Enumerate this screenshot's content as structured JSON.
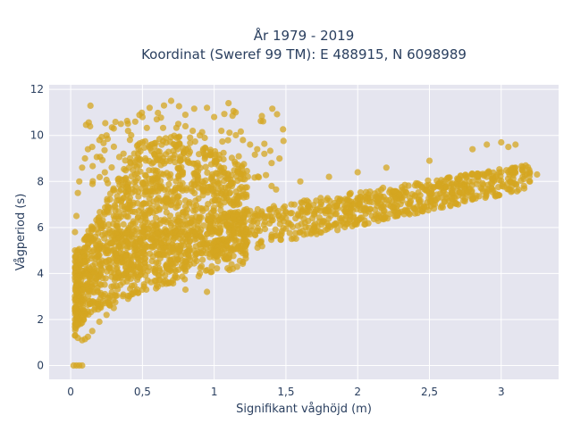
{
  "chart_data": {
    "type": "scatter",
    "title_lines": [
      "År 1979 - 2019",
      "Koordinat (Sweref 99 TM): E 488915, N 6098989"
    ],
    "xlabel": "Signifikant våghöjd (m)",
    "ylabel": "Vågperiod (s)",
    "xlim": [
      -0.15,
      3.4
    ],
    "ylim": [
      -0.6,
      12.2
    ],
    "x_ticks": [
      0,
      0.5,
      1,
      1.5,
      2,
      2.5,
      3
    ],
    "x_tick_labels": [
      "0",
      "0,5",
      "1",
      "1,5",
      "2",
      "2,5",
      "3"
    ],
    "y_ticks": [
      0,
      2,
      4,
      6,
      8,
      10,
      12
    ],
    "y_tick_labels": [
      "0",
      "2",
      "4",
      "6",
      "8",
      "10",
      "12"
    ],
    "grid": true,
    "colors": {
      "marker": "#d4a520",
      "plot_bg": "#e5e5ef",
      "grid": "#ffffff",
      "text": "#2a3f5f"
    },
    "point_count_estimate": 2400,
    "points": [
      [
        0.02,
        0.0
      ],
      [
        0.04,
        0.0
      ],
      [
        0.06,
        0.0
      ],
      [
        0.08,
        0.0
      ],
      [
        0.03,
        1.3
      ],
      [
        0.05,
        1.2
      ],
      [
        0.08,
        1.1
      ],
      [
        0.1,
        1.15
      ],
      [
        0.12,
        1.25
      ],
      [
        0.15,
        1.5
      ],
      [
        0.2,
        1.9
      ],
      [
        0.25,
        2.2
      ],
      [
        0.3,
        2.5
      ],
      [
        0.4,
        2.9
      ],
      [
        0.5,
        3.3
      ],
      [
        0.6,
        3.5
      ],
      [
        0.7,
        3.6
      ],
      [
        0.8,
        3.3
      ],
      [
        0.9,
        4.0
      ],
      [
        0.03,
        2.0
      ],
      [
        0.03,
        3.0
      ],
      [
        0.03,
        4.0
      ],
      [
        0.03,
        5.0
      ],
      [
        0.03,
        5.8
      ],
      [
        0.04,
        6.5
      ],
      [
        0.05,
        7.5
      ],
      [
        0.06,
        8.0
      ],
      [
        0.08,
        8.6
      ],
      [
        0.1,
        9.0
      ],
      [
        0.12,
        9.4
      ],
      [
        0.15,
        9.5
      ],
      [
        0.2,
        9.8
      ],
      [
        0.25,
        10.0
      ],
      [
        0.3,
        10.3
      ],
      [
        0.35,
        10.5
      ],
      [
        0.4,
        10.2
      ],
      [
        0.45,
        10.6
      ],
      [
        0.5,
        10.8
      ],
      [
        0.55,
        11.2
      ],
      [
        0.6,
        10.7
      ],
      [
        0.65,
        11.3
      ],
      [
        0.7,
        11.5
      ],
      [
        0.75,
        10.5
      ],
      [
        0.8,
        10.4
      ],
      [
        0.85,
        10.2
      ],
      [
        0.9,
        10.0
      ],
      [
        0.95,
        11.2
      ],
      [
        1.0,
        10.8
      ],
      [
        1.05,
        10.2
      ],
      [
        1.1,
        11.4
      ],
      [
        1.15,
        11.0
      ],
      [
        1.2,
        9.8
      ],
      [
        1.25,
        9.6
      ],
      [
        1.3,
        9.4
      ],
      [
        1.35,
        9.2
      ],
      [
        1.4,
        8.8
      ],
      [
        0.05,
        5.0
      ],
      [
        0.1,
        5.5
      ],
      [
        0.15,
        6.0
      ],
      [
        0.2,
        6.2
      ],
      [
        0.3,
        6.5
      ],
      [
        0.4,
        6.8
      ],
      [
        0.5,
        7.0
      ],
      [
        0.6,
        7.2
      ],
      [
        0.7,
        7.0
      ],
      [
        0.8,
        6.9
      ],
      [
        0.1,
        4.5
      ],
      [
        0.2,
        4.8
      ],
      [
        0.3,
        5.0
      ],
      [
        0.4,
        5.3
      ],
      [
        0.5,
        5.1
      ],
      [
        0.6,
        5.4
      ],
      [
        0.7,
        5.6
      ],
      [
        0.8,
        5.7
      ],
      [
        0.9,
        5.8
      ],
      [
        1.0,
        5.9
      ],
      [
        1.1,
        6.0
      ],
      [
        1.2,
        6.1
      ],
      [
        1.3,
        6.2
      ],
      [
        1.4,
        6.3
      ],
      [
        1.5,
        6.4
      ],
      [
        1.6,
        6.5
      ],
      [
        1.7,
        6.6
      ],
      [
        1.8,
        6.7
      ],
      [
        1.9,
        6.8
      ],
      [
        2.0,
        7.0
      ],
      [
        2.1,
        7.1
      ],
      [
        2.2,
        7.2
      ],
      [
        2.3,
        7.3
      ],
      [
        2.4,
        7.4
      ],
      [
        2.5,
        7.5
      ],
      [
        2.6,
        7.6
      ],
      [
        2.7,
        7.8
      ],
      [
        2.8,
        8.0
      ],
      [
        2.9,
        8.2
      ],
      [
        3.0,
        8.4
      ],
      [
        3.1,
        8.6
      ],
      [
        3.2,
        8.4
      ],
      [
        2.9,
        9.6
      ],
      [
        3.0,
        9.7
      ],
      [
        3.05,
        9.5
      ],
      [
        3.1,
        9.6
      ],
      [
        2.8,
        9.4
      ],
      [
        2.5,
        8.9
      ],
      [
        2.2,
        8.6
      ],
      [
        2.0,
        8.4
      ],
      [
        1.8,
        8.2
      ],
      [
        1.6,
        8.0
      ],
      [
        1.4,
        7.8
      ],
      [
        1.2,
        7.6
      ],
      [
        1.0,
        7.4
      ],
      [
        3.25,
        8.3
      ],
      [
        3.15,
        8.2
      ],
      [
        3.2,
        8.0
      ],
      [
        2.7,
        7.0
      ],
      [
        2.4,
        6.8
      ],
      [
        2.1,
        6.5
      ],
      [
        1.9,
        6.2
      ],
      [
        1.6,
        5.8
      ],
      [
        1.4,
        5.6
      ],
      [
        1.2,
        5.0
      ],
      [
        1.0,
        4.7
      ],
      [
        0.95,
        3.2
      ]
    ]
  }
}
